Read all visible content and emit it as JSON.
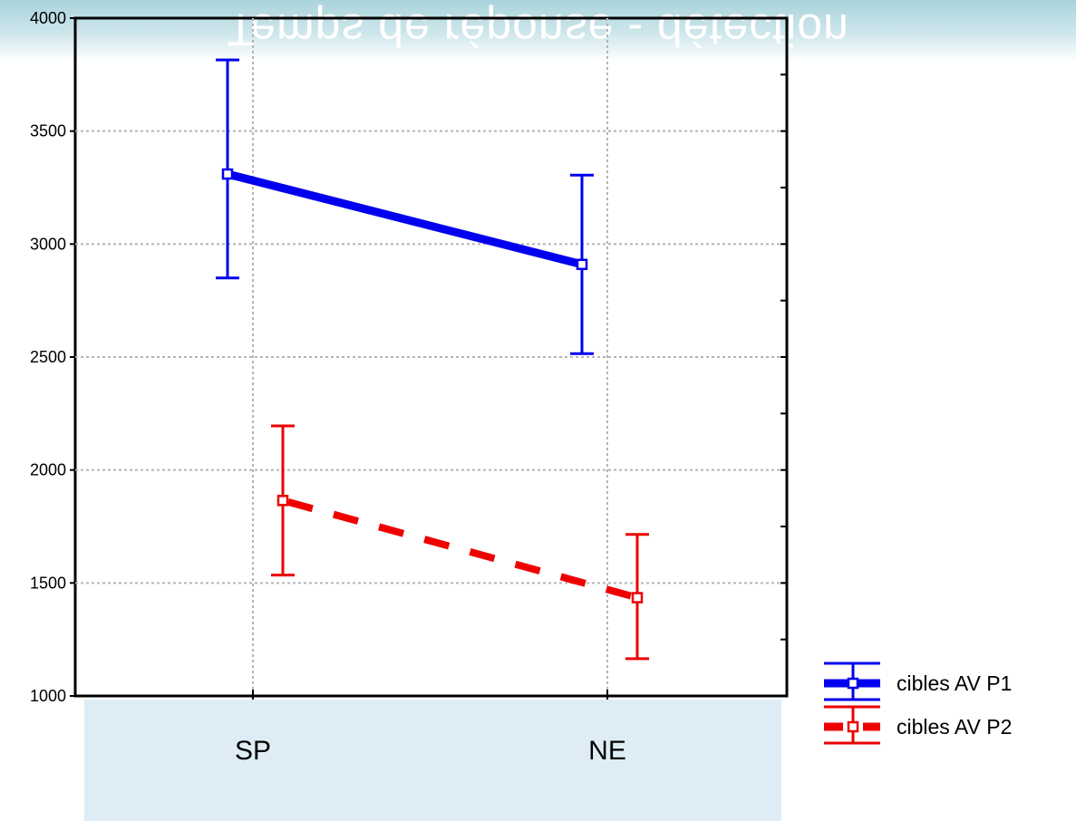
{
  "chart_data": {
    "type": "line",
    "title": "Temps de réponse - détection",
    "categories": [
      "SP",
      "NE"
    ],
    "ylim": [
      1000,
      4000
    ],
    "yticks": [
      1000,
      1500,
      2000,
      2500,
      3000,
      3500,
      4000
    ],
    "grid": true,
    "legend_position": "bottom-right",
    "series": [
      {
        "name": "cibles AV P1",
        "color": "#0000ee",
        "style": "solid",
        "values": [
          3310,
          2910
        ],
        "err_low": [
          2850,
          2515
        ],
        "err_high": [
          3815,
          3305
        ]
      },
      {
        "name": "cibles AV P2",
        "color": "#ee0000",
        "style": "dashed",
        "values": [
          1865,
          1435
        ],
        "err_low": [
          1535,
          1165
        ],
        "err_high": [
          2195,
          1715
        ]
      }
    ]
  }
}
